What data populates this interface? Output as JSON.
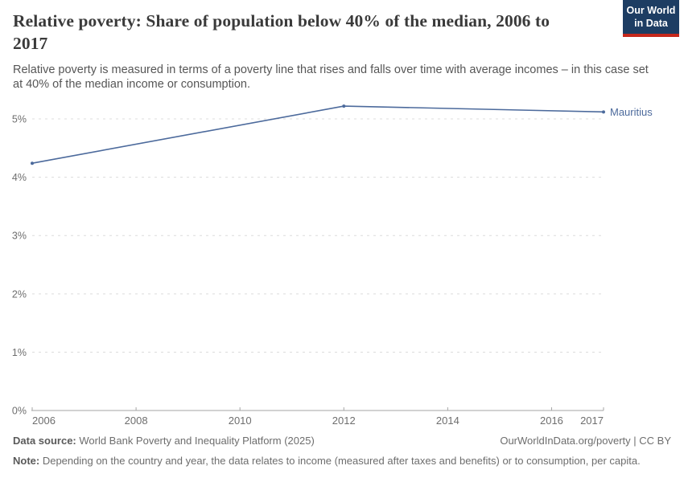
{
  "header": {
    "title": "Relative poverty: Share of population below 40% of the median, 2006 to 2017",
    "subtitle": "Relative poverty is measured in terms of a poverty line that rises and falls over time with average incomes – in this case set at 40% of the median income or consumption.",
    "logo": {
      "line1": "Our World",
      "line2": "in Data"
    }
  },
  "chart_data": {
    "type": "line",
    "title": "Relative poverty: Share of population below 40% of the median, 2006 to 2017",
    "xlabel": "",
    "ylabel": "",
    "xlim": [
      2006,
      2017
    ],
    "ylim": [
      0,
      5.4
    ],
    "x_ticks": [
      2006,
      2008,
      2010,
      2012,
      2014,
      2016,
      2017
    ],
    "y_ticks": [
      0,
      1,
      2,
      3,
      4,
      5
    ],
    "y_tick_suffix": "%",
    "grid": "horizontal dashed",
    "legend": "end-of-line label",
    "series": [
      {
        "name": "Mauritius",
        "color": "#4c6a9c",
        "points": [
          [
            2006,
            4.24
          ],
          [
            2012,
            5.22
          ],
          [
            2017,
            5.12
          ]
        ]
      }
    ]
  },
  "footer": {
    "datasource_label": "Data source:",
    "datasource_value": " World Bank Poverty and Inequality Platform (2025)",
    "attribution": "OurWorldInData.org/poverty | CC BY",
    "note_label": "Note:",
    "note_value": " Depending on the country and year, the data relates to income (measured after taxes and benefits) or to consumption, per capita."
  },
  "colors": {
    "accent_blue": "#4c6a9c",
    "gridline": "#dcdcdc",
    "axis_line": "#a5a5a5",
    "axis_text": "#6e6e6e",
    "title": "#3a3a3a",
    "subtitle": "#565656",
    "footer": "#6d6d6d",
    "logo_bg": "#1d3d63",
    "logo_accent": "#c5281c"
  }
}
